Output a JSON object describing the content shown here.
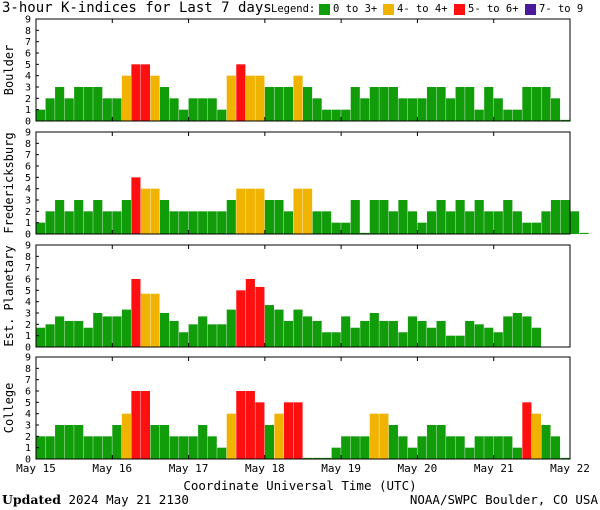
{
  "header": {
    "title": "3-hour K-indices for Last 7 days",
    "legend_label": "Legend:",
    "legend": [
      {
        "label": "0 to 3+",
        "color": "#119c0a"
      },
      {
        "label": "4- to 4+",
        "color": "#f0b400"
      },
      {
        "label": "5- to 6+",
        "color": "#ff1010"
      },
      {
        "label": "7- to 9",
        "color": "#4a1a9c"
      }
    ]
  },
  "footer": {
    "updated_label": "Updated",
    "updated_value": "2024 May 21 2130",
    "source": "NOAA/SWPC Boulder, CO USA"
  },
  "chart_data": {
    "type": "bar",
    "x_tick_labels": [
      "May 15",
      "May 16",
      "May 17",
      "May 18",
      "May 19",
      "May 20",
      "May 21",
      "May 22"
    ],
    "xlabel": "Coordinate Universal Time (UTC)",
    "y_ticks": [
      "0",
      "1",
      "2",
      "3",
      "4",
      "5",
      "6",
      "7",
      "8",
      "9"
    ],
    "ylim": [
      0,
      9
    ],
    "bars_per_day": 8,
    "color_thresholds": [
      {
        "min": 0,
        "color": "#119c0a"
      },
      {
        "min": 4,
        "color": "#f0b400"
      },
      {
        "min": 5,
        "color": "#ff1010"
      },
      {
        "min": 7,
        "color": "#4a1a9c"
      }
    ],
    "panels": [
      {
        "station": "Boulder",
        "values": [
          1,
          2,
          3,
          2,
          3,
          3,
          3,
          2,
          2,
          4,
          5,
          5,
          4,
          3,
          2,
          1,
          2,
          2,
          2,
          1,
          4,
          5,
          4,
          4,
          3,
          3,
          3,
          4,
          3,
          2,
          1,
          1,
          1,
          3,
          2,
          3,
          3,
          3,
          2,
          2,
          2,
          3,
          3,
          2,
          3,
          3,
          1,
          3,
          2,
          1,
          1,
          3,
          3,
          3,
          2,
          0.1
        ]
      },
      {
        "station": "Fredericksburg",
        "values": [
          1,
          2,
          3,
          2,
          3,
          2,
          3,
          2,
          2,
          3,
          5,
          4,
          4,
          3,
          2,
          2,
          2,
          2,
          2,
          2,
          3,
          4,
          4,
          4,
          3,
          3,
          2,
          4,
          4,
          2,
          2,
          1,
          1,
          3,
          0.1,
          3,
          3,
          2,
          3,
          2,
          1,
          2,
          3,
          2,
          3,
          2,
          3,
          2,
          2,
          3,
          2,
          1,
          1,
          2,
          3,
          3,
          2,
          0.1
        ]
      },
      {
        "station": "Est. Planetary",
        "values": [
          1.7,
          2,
          2.7,
          2.3,
          2.3,
          1.7,
          3,
          2.7,
          2.7,
          3.3,
          6,
          4.7,
          4.7,
          3,
          2.3,
          1.3,
          2,
          2.7,
          2,
          2,
          3.3,
          5,
          6,
          5.3,
          3.7,
          3.3,
          2.3,
          3.3,
          2.7,
          2.3,
          1.3,
          1.3,
          2.7,
          1.7,
          2.3,
          3,
          2.3,
          2.3,
          1.3,
          2.7,
          2.3,
          1.7,
          2.3,
          1,
          1,
          2.3,
          2,
          1.7,
          1.3,
          2.7,
          3,
          2.7,
          1.7
        ]
      },
      {
        "station": "College",
        "values": [
          2,
          2,
          3,
          3,
          3,
          2,
          2,
          2,
          3,
          4,
          6,
          6,
          3,
          3,
          2,
          2,
          2,
          3,
          2,
          1,
          4,
          6,
          6,
          5,
          3,
          4,
          5,
          5,
          0.1,
          0.1,
          0.1,
          1,
          2,
          2,
          2,
          4,
          4,
          3,
          2,
          1,
          2,
          3,
          3,
          2,
          2,
          1,
          2,
          2,
          2,
          2,
          1,
          5,
          4,
          3,
          2,
          0.1
        ]
      }
    ]
  }
}
